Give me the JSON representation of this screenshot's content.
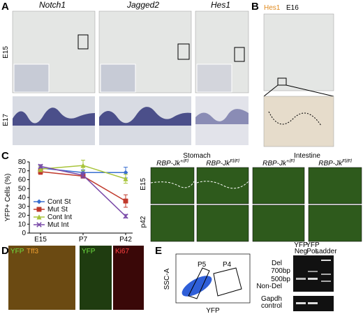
{
  "panels": {
    "a": {
      "letter": "A",
      "columns": [
        "Notch1",
        "Jagged2",
        "Hes1"
      ],
      "rows": [
        "E15",
        "E17"
      ]
    },
    "b": {
      "letter": "B",
      "stain": "Hes1",
      "stage": "E16"
    },
    "c": {
      "letter": "C",
      "groups": [
        "Stomach",
        "Intestine"
      ],
      "genotypes": [
        {
          "gene": "RBP-Jk",
          "sup": "+/Fl"
        },
        {
          "gene": "RBP-Jk",
          "sup": "Fl/Fl"
        },
        {
          "gene": "RBP-Jk",
          "sup": "+/Fl"
        },
        {
          "gene": "RBP-Jk",
          "sup": "Fl/Fl"
        }
      ],
      "rows": [
        "E15",
        "p42"
      ]
    },
    "d": {
      "letter": "D",
      "left": [
        "YFP",
        "Tff3"
      ],
      "right": [
        "YFP",
        "Ki67"
      ]
    },
    "e": {
      "letter": "E",
      "gates": [
        "P5",
        "P4"
      ],
      "y_axis": "SSC-A",
      "x_axis": "YFP",
      "lanes": [
        [
          "YFP",
          "Neg"
        ],
        [
          "YFP",
          "Pos"
        ],
        [
          "Ladder"
        ]
      ],
      "bands": [
        "Del",
        "700bp",
        "500bp",
        "Non-Del"
      ],
      "control": [
        "Gapdh",
        "control"
      ]
    }
  },
  "chart_data": {
    "type": "line",
    "y_label": "YFP+ Cells (%)",
    "categories": [
      "E15",
      "P7",
      "P42"
    ],
    "ylim": [
      0,
      80
    ],
    "yticks": [
      0,
      10,
      20,
      30,
      40,
      50,
      60,
      70,
      80
    ],
    "legend": "lower-left",
    "series": [
      {
        "name": "Cont St",
        "color": "#3a6fd0",
        "marker": "diamond",
        "values": [
          73,
          68,
          68
        ],
        "errors": [
          3,
          3,
          6
        ]
      },
      {
        "name": "Mut St",
        "color": "#c0392b",
        "marker": "square",
        "values": [
          69,
          64,
          36
        ],
        "errors": [
          3,
          2,
          7
        ]
      },
      {
        "name": "Cont Int",
        "color": "#a8c43a",
        "marker": "triangle",
        "values": [
          72,
          76,
          61
        ],
        "errors": [
          3,
          6,
          5
        ]
      },
      {
        "name": "Mut Int",
        "color": "#7a4aa8",
        "marker": "x",
        "values": [
          75,
          65,
          19
        ],
        "errors": [
          2,
          3,
          2
        ]
      }
    ]
  }
}
